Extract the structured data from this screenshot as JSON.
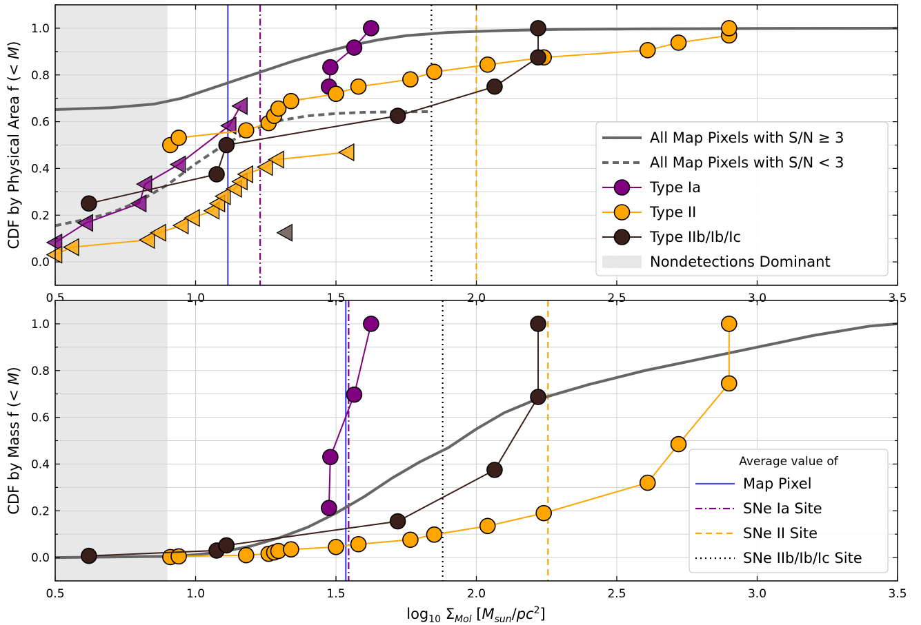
{
  "colors": {
    "all_pixels": "#666666",
    "type_ia": "#800080",
    "type_ii": "#FFA500",
    "type_iib": "#3a1f1a",
    "nondetection": "#e8e8e8",
    "map_pixel": "#4b4bf0",
    "sne_ia_site": "#800080",
    "sne_ii_site": "#FFA500",
    "sne_iib_site": "#000000"
  },
  "chart_data": [
    {
      "type": "line",
      "panel": "top",
      "ylabel": "CDF by Physical Area f (< M)",
      "xlabel": "",
      "xlim": [
        0.5,
        3.5
      ],
      "ylim": [
        -0.1,
        1.1
      ],
      "xticks": [
        "0.5",
        "1.0",
        "1.5",
        "2.0",
        "2.5",
        "3.0",
        "3.5"
      ],
      "yticks": [
        "0.0",
        "0.2",
        "0.4",
        "0.6",
        "0.8",
        "1.0"
      ],
      "grid": true,
      "legend_position": "lower-right",
      "shaded_region": {
        "x": [
          0.5,
          0.9
        ],
        "label": "Nondetections Dominant"
      },
      "series": [
        {
          "name": "All Map Pixels with S/N ≥ 3",
          "style": "solid",
          "color": "#666666",
          "x": [
            0.5,
            0.7,
            0.85,
            0.95,
            1.05,
            1.15,
            1.25,
            1.35,
            1.45,
            1.55,
            1.65,
            1.75,
            1.9,
            2.1,
            2.3,
            2.6,
            3.0,
            3.5
          ],
          "y": [
            0.652,
            0.66,
            0.675,
            0.7,
            0.74,
            0.78,
            0.82,
            0.86,
            0.895,
            0.925,
            0.95,
            0.968,
            0.982,
            0.99,
            0.995,
            0.997,
            0.999,
            1.0
          ]
        },
        {
          "name": "All Map Pixels with S/N < 3",
          "style": "dashed",
          "color": "#666666",
          "x": [
            0.5,
            0.6,
            0.7,
            0.8,
            0.9,
            1.0,
            1.1,
            1.2,
            1.3,
            1.4,
            1.5,
            1.6,
            1.7,
            1.84
          ],
          "y": [
            0.155,
            0.18,
            0.21,
            0.26,
            0.33,
            0.42,
            0.5,
            0.565,
            0.605,
            0.625,
            0.635,
            0.64,
            0.642,
            0.643
          ]
        },
        {
          "name": "Type Ia",
          "marker": "circle",
          "color": "#800080",
          "x": [
            1.475,
            1.48,
            1.565,
            1.625
          ],
          "y": [
            0.75,
            0.833,
            0.917,
            1.0
          ]
        },
        {
          "name": "Type Ia nondetections",
          "marker": "triangle-left",
          "color": "#800080",
          "x": [
            0.5,
            0.61,
            0.8,
            0.82,
            0.94,
            1.12,
            1.16
          ],
          "y": [
            0.083,
            0.167,
            0.25,
            0.333,
            0.417,
            0.583,
            0.667
          ]
        },
        {
          "name": "Type II",
          "marker": "circle",
          "color": "#FFA500",
          "x": [
            0.91,
            0.94,
            1.18,
            1.26,
            1.28,
            1.295,
            1.34,
            1.5,
            1.58,
            1.765,
            1.85,
            2.04,
            2.24,
            2.61,
            2.72,
            2.9,
            2.9
          ],
          "y": [
            0.5,
            0.531,
            0.563,
            0.594,
            0.625,
            0.656,
            0.688,
            0.719,
            0.75,
            0.781,
            0.813,
            0.844,
            0.875,
            0.906,
            0.938,
            0.969,
            1.0
          ]
        },
        {
          "name": "Type II nondetections",
          "marker": "triangle-left",
          "color": "#FFA500",
          "x": [
            0.5,
            0.56,
            0.83,
            0.87,
            0.95,
            0.99,
            1.06,
            1.08,
            1.1,
            1.14,
            1.16,
            1.18,
            1.25,
            1.29,
            1.54
          ],
          "y": [
            0.031,
            0.063,
            0.094,
            0.125,
            0.156,
            0.188,
            0.219,
            0.25,
            0.281,
            0.313,
            0.344,
            0.375,
            0.406,
            0.438,
            0.469
          ]
        },
        {
          "name": "Type IIb/Ib/Ic",
          "marker": "circle",
          "color": "#3a1f1a",
          "x": [
            0.62,
            1.075,
            1.11,
            1.72,
            2.065,
            2.22,
            2.22
          ],
          "y": [
            0.25,
            0.375,
            0.5,
            0.625,
            0.75,
            0.875,
            1.0
          ]
        },
        {
          "name": "Type IIb/Ib/Ic nondetection",
          "marker": "triangle-left",
          "color": "#5a4a48",
          "x": [
            1.32
          ],
          "y": [
            0.125
          ]
        }
      ],
      "vlines": [
        {
          "name": "Map Pixel",
          "x": 1.115,
          "style": "solid",
          "color": "#4b4bf0"
        },
        {
          "name": "SNe Ia Site",
          "x": 1.23,
          "style": "dashdot",
          "color": "#800080"
        },
        {
          "name": "SNe II Site",
          "x": 2.0,
          "style": "dashed",
          "color": "#FFA500"
        },
        {
          "name": "SNe IIb/Ib/Ic Site",
          "x": 1.84,
          "style": "dotted",
          "color": "#000000"
        }
      ],
      "legend": [
        {
          "label": "All Map Pixels with S/N  ≥  3",
          "kind": "line-solid",
          "color": "#666666"
        },
        {
          "label": "All Map Pixels with S/N < 3",
          "kind": "line-dashed",
          "color": "#666666"
        },
        {
          "label": "Type Ia",
          "kind": "circle",
          "color": "#800080"
        },
        {
          "label": "Type II",
          "kind": "circle",
          "color": "#FFA500"
        },
        {
          "label": "Type IIb/Ib/Ic",
          "kind": "circle",
          "color": "#3a1f1a"
        },
        {
          "label": "Nondetections Dominant",
          "kind": "patch",
          "color": "#e8e8e8"
        }
      ]
    },
    {
      "type": "line",
      "panel": "bottom",
      "ylabel": "CDF by Mass f (< M)",
      "xlabel": "log10 ΣMol [Msun/pc2]",
      "xlim": [
        0.5,
        3.5
      ],
      "ylim": [
        -0.1,
        1.1
      ],
      "xticks": [
        "0.5",
        "1.0",
        "1.5",
        "2.0",
        "2.5",
        "3.0",
        "3.5"
      ],
      "yticks": [
        "0.0",
        "0.2",
        "0.4",
        "0.6",
        "0.8",
        "1.0"
      ],
      "grid": true,
      "legend_position": "lower-right",
      "shaded_region": {
        "x": [
          0.5,
          0.9
        ]
      },
      "series": [
        {
          "name": "All Map Pixels",
          "style": "solid",
          "color": "#666666",
          "x": [
            0.5,
            0.9,
            1.0,
            1.1,
            1.2,
            1.3,
            1.4,
            1.5,
            1.6,
            1.7,
            1.8,
            1.9,
            2.0,
            2.1,
            2.2,
            2.4,
            2.6,
            2.8,
            3.0,
            3.2,
            3.4,
            3.5
          ],
          "y": [
            0.0,
            0.005,
            0.012,
            0.025,
            0.05,
            0.085,
            0.13,
            0.19,
            0.26,
            0.34,
            0.41,
            0.47,
            0.55,
            0.62,
            0.67,
            0.74,
            0.8,
            0.85,
            0.9,
            0.95,
            0.99,
            1.0
          ]
        },
        {
          "name": "Type Ia",
          "marker": "circle",
          "color": "#800080",
          "x": [
            1.475,
            1.48,
            1.565,
            1.625
          ],
          "y": [
            0.212,
            0.43,
            0.697,
            1.0
          ]
        },
        {
          "name": "Type II",
          "marker": "circle",
          "color": "#FFA500",
          "x": [
            0.91,
            0.94,
            1.18,
            1.26,
            1.28,
            1.295,
            1.34,
            1.5,
            1.58,
            1.765,
            1.85,
            2.04,
            2.24,
            2.61,
            2.72,
            2.9,
            2.9
          ],
          "y": [
            0.002,
            0.005,
            0.01,
            0.016,
            0.022,
            0.028,
            0.035,
            0.045,
            0.057,
            0.076,
            0.098,
            0.135,
            0.19,
            0.32,
            0.485,
            0.745,
            1.0
          ]
        },
        {
          "name": "Type IIb/Ib/Ic",
          "marker": "circle",
          "color": "#3a1f1a",
          "x": [
            0.62,
            1.075,
            1.11,
            1.72,
            2.065,
            2.22,
            2.22
          ],
          "y": [
            0.007,
            0.03,
            0.052,
            0.155,
            0.375,
            0.687,
            1.0
          ]
        }
      ],
      "vlines": [
        {
          "name": "Map Pixel",
          "x": 1.535,
          "style": "solid",
          "color": "#4b4bf0"
        },
        {
          "name": "SNe Ia Site",
          "x": 1.545,
          "style": "dashdot",
          "color": "#800080"
        },
        {
          "name": "SNe II Site",
          "x": 2.255,
          "style": "dashed",
          "color": "#FFA500"
        },
        {
          "name": "SNe IIb/Ib/Ic Site",
          "x": 1.88,
          "style": "dotted",
          "color": "#000000"
        }
      ],
      "legend_title": "Average value of",
      "legend": [
        {
          "label": "Map Pixel",
          "kind": "line-solid",
          "color": "#4b4bf0"
        },
        {
          "label": "SNe Ia Site",
          "kind": "line-dashdot",
          "color": "#800080"
        },
        {
          "label": "SNe II Site",
          "kind": "line-dashed",
          "color": "#FFA500"
        },
        {
          "label": "SNe IIb/Ib/Ic Site",
          "kind": "line-dotted",
          "color": "#000000"
        }
      ]
    }
  ]
}
